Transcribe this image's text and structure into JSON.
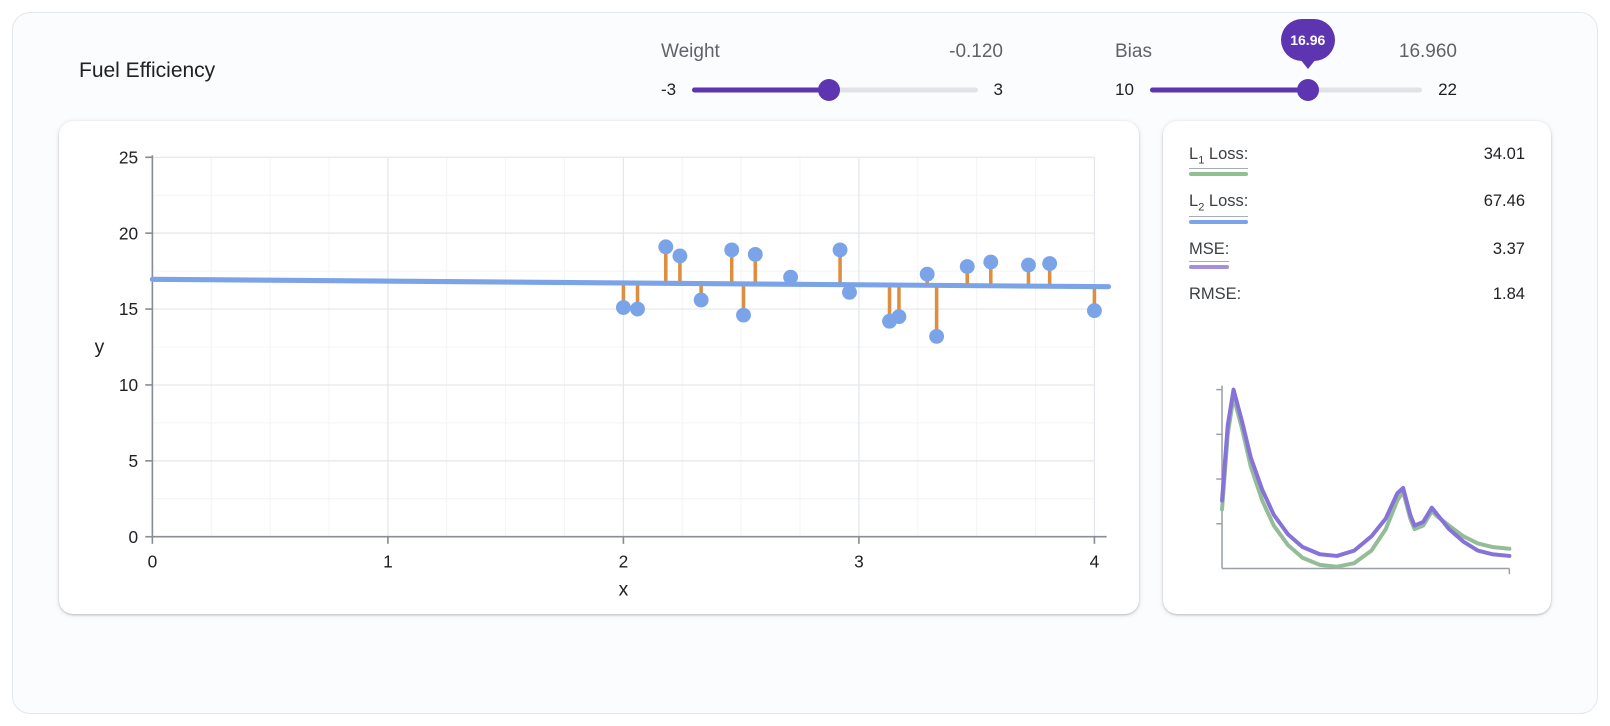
{
  "page": {
    "title": "Fuel Efficiency"
  },
  "controls": {
    "weight": {
      "label": "Weight",
      "value": "-0.120",
      "min": "-3",
      "max": "3",
      "min_num": -3,
      "max_num": 3,
      "value_num": -0.12
    },
    "bias": {
      "label": "Bias",
      "value": "16.960",
      "min": "10",
      "max": "22",
      "min_num": 10,
      "max_num": 22,
      "value_num": 16.96,
      "tooltip": "16.96"
    }
  },
  "metrics": [
    {
      "prefix": "L",
      "sub": "1",
      "suffix": " Loss:",
      "value": "34.01",
      "color": "#8fbf92"
    },
    {
      "prefix": "L",
      "sub": "2",
      "suffix": " Loss:",
      "value": "67.46",
      "color": "#7aa3e8"
    },
    {
      "prefix": "MSE:",
      "sub": "",
      "suffix": "",
      "value": "3.37",
      "color": "#a78fe0"
    },
    {
      "prefix": "RMSE:",
      "sub": "",
      "suffix": "",
      "value": "1.84",
      "color": ""
    }
  ],
  "theme": {
    "purple": "#5e35b1",
    "blue": "#7aa3e8",
    "orange": "#de8e3f",
    "green": "#8fbf92",
    "violet": "#8672d8"
  },
  "chart_data": [
    {
      "type": "scatter",
      "title": "",
      "xlabel": "x",
      "ylabel": "y",
      "xlim": [
        0,
        4
      ],
      "ylim": [
        0,
        25
      ],
      "xticks": [
        0,
        1,
        2,
        3,
        4
      ],
      "yticks": [
        0,
        5,
        10,
        15,
        20,
        25
      ],
      "line": {
        "weight": -0.12,
        "bias": 16.96
      },
      "points": [
        [
          2.0,
          15.1
        ],
        [
          2.06,
          15.0
        ],
        [
          2.18,
          19.1
        ],
        [
          2.24,
          18.5
        ],
        [
          2.33,
          15.6
        ],
        [
          2.46,
          18.9
        ],
        [
          2.51,
          14.6
        ],
        [
          2.56,
          18.6
        ],
        [
          2.71,
          17.1
        ],
        [
          2.92,
          18.9
        ],
        [
          2.96,
          16.1
        ],
        [
          3.13,
          14.2
        ],
        [
          3.17,
          14.5
        ],
        [
          3.29,
          17.3
        ],
        [
          3.33,
          13.2
        ],
        [
          3.46,
          17.8
        ],
        [
          3.56,
          18.1
        ],
        [
          3.72,
          17.9
        ],
        [
          3.81,
          18.0
        ],
        [
          4.0,
          14.9
        ]
      ],
      "colors": {
        "point": "#7aa3e8",
        "line": "#7aa3e8",
        "residual": "#de8e3f",
        "grid": "#e3e6ec",
        "grid_minor": "#f2f4f7",
        "axis": "#888d93",
        "text": "#202124"
      }
    },
    {
      "type": "line",
      "xlim": [
        0,
        1
      ],
      "ylim": [
        0,
        1
      ],
      "series": [
        {
          "name": "l1-loss-curve",
          "color": "#94bd97",
          "points": [
            [
              0,
              0.33
            ],
            [
              0.02,
              0.75
            ],
            [
              0.04,
              0.96
            ],
            [
              0.07,
              0.78
            ],
            [
              0.1,
              0.57
            ],
            [
              0.14,
              0.38
            ],
            [
              0.18,
              0.24
            ],
            [
              0.23,
              0.13
            ],
            [
              0.28,
              0.06
            ],
            [
              0.34,
              0.02
            ],
            [
              0.4,
              0.01
            ],
            [
              0.46,
              0.03
            ],
            [
              0.52,
              0.1
            ],
            [
              0.57,
              0.22
            ],
            [
              0.61,
              0.38
            ],
            [
              0.63,
              0.43
            ],
            [
              0.655,
              0.28
            ],
            [
              0.67,
              0.22
            ],
            [
              0.7,
              0.24
            ],
            [
              0.73,
              0.32
            ],
            [
              0.75,
              0.29
            ],
            [
              0.79,
              0.24
            ],
            [
              0.84,
              0.18
            ],
            [
              0.89,
              0.14
            ],
            [
              0.94,
              0.12
            ],
            [
              1,
              0.11
            ]
          ]
        },
        {
          "name": "mse-loss-curve",
          "color": "#8672d8",
          "points": [
            [
              0,
              0.38
            ],
            [
              0.02,
              0.8
            ],
            [
              0.04,
              1.0
            ],
            [
              0.07,
              0.82
            ],
            [
              0.1,
              0.62
            ],
            [
              0.14,
              0.44
            ],
            [
              0.18,
              0.3
            ],
            [
              0.23,
              0.19
            ],
            [
              0.28,
              0.12
            ],
            [
              0.34,
              0.08
            ],
            [
              0.4,
              0.07
            ],
            [
              0.46,
              0.1
            ],
            [
              0.52,
              0.18
            ],
            [
              0.57,
              0.28
            ],
            [
              0.61,
              0.42
            ],
            [
              0.63,
              0.45
            ],
            [
              0.655,
              0.3
            ],
            [
              0.67,
              0.24
            ],
            [
              0.7,
              0.26
            ],
            [
              0.73,
              0.34
            ],
            [
              0.75,
              0.3
            ],
            [
              0.79,
              0.22
            ],
            [
              0.84,
              0.15
            ],
            [
              0.89,
              0.1
            ],
            [
              0.94,
              0.08
            ],
            [
              1,
              0.07
            ]
          ]
        }
      ]
    }
  ]
}
